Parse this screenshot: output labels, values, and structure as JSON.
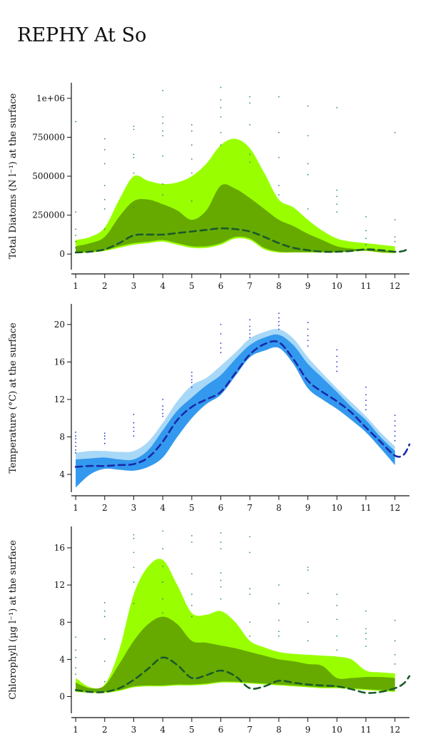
{
  "page": {
    "title": "REPHY At So"
  },
  "chart_data": [
    {
      "type": "area",
      "ylabel": "Total Diatoms (N l⁻¹) at the surface",
      "xlim": [
        0.85,
        12.5
      ],
      "ylim": [
        -100000,
        1100000
      ],
      "x_ticks": [
        1,
        2,
        3,
        4,
        5,
        6,
        7,
        8,
        9,
        10,
        11,
        12
      ],
      "y_ticks": [
        0,
        250000,
        500000,
        750000,
        1000000
      ],
      "y_tick_labels": [
        "0",
        "250000",
        "500000",
        "750000",
        "1e+06"
      ],
      "colors": {
        "outer_band": "#99ff00",
        "inner_band": "#66aa00",
        "median_line": "#1a5a2a",
        "points": "#2a8a7a"
      },
      "outer_band": {
        "x": [
          1,
          1.5,
          2,
          2.5,
          3,
          3.5,
          4,
          4.5,
          5,
          5.5,
          6,
          6.5,
          7,
          7.5,
          8,
          8.5,
          9,
          9.5,
          10,
          10.5,
          11,
          11.5,
          12
        ],
        "lower": [
          5000,
          10000,
          20000,
          40000,
          60000,
          70000,
          80000,
          60000,
          40000,
          40000,
          60000,
          100000,
          90000,
          30000,
          10000,
          10000,
          10000,
          10000,
          10000,
          15000,
          20000,
          10000,
          5000
        ],
        "upper": [
          90000,
          110000,
          170000,
          350000,
          500000,
          470000,
          450000,
          460000,
          500000,
          580000,
          700000,
          740000,
          680000,
          520000,
          350000,
          300000,
          220000,
          150000,
          100000,
          80000,
          70000,
          60000,
          50000
        ]
      },
      "inner_band": {
        "x": [
          1,
          1.5,
          2,
          2.5,
          3,
          3.5,
          4,
          4.5,
          5,
          5.5,
          6,
          6.5,
          7,
          7.5,
          8,
          8.5,
          9,
          9.5,
          10,
          10.5,
          11,
          11.5,
          12
        ],
        "lower": [
          10000,
          15000,
          25000,
          50000,
          70000,
          80000,
          90000,
          70000,
          50000,
          50000,
          70000,
          110000,
          100000,
          40000,
          15000,
          12000,
          12000,
          12000,
          12000,
          18000,
          22000,
          12000,
          8000
        ],
        "upper": [
          50000,
          70000,
          110000,
          240000,
          340000,
          350000,
          320000,
          280000,
          220000,
          280000,
          440000,
          420000,
          360000,
          290000,
          220000,
          180000,
          130000,
          90000,
          50000,
          35000,
          30000,
          25000,
          20000
        ]
      },
      "median_line": {
        "x": [
          1,
          1.5,
          2,
          2.5,
          3,
          3.5,
          4,
          4.5,
          5,
          5.5,
          6,
          6.5,
          7,
          7.5,
          8,
          8.5,
          9,
          9.5,
          10,
          10.5,
          11,
          11.5,
          12,
          12.3,
          12.5
        ],
        "y": [
          10000,
          15000,
          30000,
          70000,
          120000,
          125000,
          125000,
          135000,
          145000,
          155000,
          165000,
          160000,
          145000,
          110000,
          70000,
          40000,
          25000,
          15000,
          15000,
          20000,
          30000,
          25000,
          15000,
          20000,
          40000
        ]
      },
      "points": {
        "x": [
          1,
          1,
          1,
          1,
          1,
          1,
          2,
          2,
          2,
          2,
          2,
          2,
          2,
          3,
          3,
          3,
          3,
          3,
          3,
          4,
          4,
          4,
          4,
          4,
          4,
          4,
          4,
          5,
          5,
          5,
          5,
          5,
          5,
          6,
          6,
          6,
          6,
          6,
          6,
          7,
          7,
          7,
          7,
          7,
          8,
          8,
          8,
          8,
          8,
          9,
          9,
          9,
          9,
          9,
          10,
          10,
          10,
          10,
          10,
          11,
          11,
          11,
          11,
          12,
          12,
          12,
          12
        ],
        "y": [
          850000,
          270000,
          160000,
          120000,
          80000,
          40000,
          740000,
          670000,
          580000,
          440000,
          350000,
          290000,
          160000,
          820000,
          800000,
          640000,
          620000,
          520000,
          300000,
          1050000,
          880000,
          840000,
          790000,
          760000,
          630000,
          450000,
          380000,
          830000,
          790000,
          700000,
          610000,
          520000,
          340000,
          1070000,
          990000,
          940000,
          880000,
          780000,
          700000,
          1010000,
          970000,
          830000,
          640000,
          590000,
          1010000,
          780000,
          620000,
          440000,
          380000,
          950000,
          760000,
          580000,
          510000,
          290000,
          940000,
          410000,
          370000,
          320000,
          270000,
          240000,
          150000,
          100000,
          60000,
          780000,
          220000,
          110000,
          80000
        ]
      }
    },
    {
      "type": "area",
      "ylabel": "Temperature (°C) at the surface",
      "xlim": [
        0.85,
        12.5
      ],
      "ylim": [
        2.1,
        22.2
      ],
      "x_ticks": [
        1,
        2,
        3,
        4,
        5,
        6,
        7,
        8,
        9,
        10,
        11,
        12
      ],
      "y_ticks": [
        4,
        8,
        12,
        16,
        20
      ],
      "y_tick_labels": [
        "4",
        "8",
        "12",
        "16",
        "20"
      ],
      "colors": {
        "outer_band": "#a8d8f8",
        "inner_band": "#3399ee",
        "median_line": "#1a2aaa",
        "points": "#2233cc"
      },
      "outer_band": {
        "x": [
          1,
          1.5,
          2,
          2.5,
          3,
          3.5,
          4,
          4.5,
          5,
          5.5,
          6,
          6.5,
          7,
          7.5,
          8,
          8.5,
          9,
          9.5,
          10,
          10.5,
          11,
          11.5,
          12
        ],
        "lower": [
          2.6,
          4.0,
          4.6,
          4.5,
          4.4,
          4.8,
          5.8,
          8.0,
          10.0,
          11.5,
          12.5,
          14.5,
          16.5,
          17.2,
          17.5,
          15.8,
          13.2,
          12.0,
          11.0,
          9.8,
          8.5,
          6.8,
          5.0
        ],
        "upper": [
          6.3,
          6.5,
          6.5,
          6.4,
          6.5,
          7.5,
          9.5,
          11.8,
          13.5,
          14.3,
          15.6,
          17.0,
          18.5,
          19.2,
          19.5,
          18.5,
          16.5,
          14.8,
          13.2,
          11.7,
          10.2,
          8.5,
          7.0
        ]
      },
      "inner_band": {
        "x": [
          1,
          1.5,
          2,
          2.5,
          3,
          3.5,
          4,
          4.5,
          5,
          5.5,
          6,
          6.5,
          7,
          7.5,
          8,
          8.5,
          9,
          9.5,
          10,
          10.5,
          11,
          11.5,
          12
        ],
        "lower": [
          2.6,
          4.0,
          4.6,
          4.5,
          4.4,
          4.8,
          5.8,
          8.0,
          10.0,
          11.5,
          12.5,
          14.5,
          16.5,
          17.2,
          17.5,
          15.8,
          13.2,
          12.0,
          11.0,
          9.8,
          8.5,
          6.8,
          5.0
        ],
        "upper": [
          5.6,
          5.7,
          5.8,
          5.6,
          5.6,
          6.6,
          8.7,
          10.8,
          12.2,
          13.5,
          14.6,
          16.3,
          17.8,
          18.6,
          18.9,
          17.8,
          15.8,
          14.3,
          12.8,
          11.2,
          9.8,
          8.0,
          6.5
        ]
      },
      "median_line": {
        "x": [
          1,
          1.5,
          2,
          2.5,
          3,
          3.5,
          4,
          4.5,
          5,
          5.5,
          6,
          6.5,
          7,
          7.5,
          8,
          8.5,
          9,
          9.5,
          10,
          10.5,
          11,
          11.5,
          12,
          12.3,
          12.5
        ],
        "y": [
          4.8,
          4.9,
          4.9,
          5.0,
          5.1,
          5.8,
          7.5,
          9.8,
          11.2,
          12.0,
          12.8,
          14.8,
          16.8,
          17.9,
          18.1,
          16.3,
          14.0,
          12.8,
          11.8,
          10.6,
          9.0,
          7.5,
          6.0,
          6.1,
          7.2
        ]
      },
      "points": {
        "x": [
          1,
          1,
          1,
          1,
          1,
          1,
          1,
          2,
          2,
          2,
          2,
          3,
          3,
          3,
          3,
          3,
          4,
          4,
          4,
          4,
          4,
          5,
          5,
          5,
          5,
          5,
          6,
          6,
          6,
          6,
          6,
          7,
          7,
          7,
          7,
          7,
          8,
          8,
          8,
          8,
          8,
          9,
          9,
          9,
          9,
          9,
          10,
          10,
          10,
          10,
          10,
          11,
          11,
          11,
          11,
          11,
          12,
          12,
          12,
          12,
          12,
          12
        ],
        "y": [
          8.5,
          8.1,
          7.8,
          7.4,
          7.0,
          6.6,
          6.3,
          8.4,
          8.1,
          7.8,
          7.3,
          10.4,
          9.5,
          9.0,
          8.6,
          8.1,
          12.0,
          11.3,
          10.9,
          10.5,
          10.2,
          14.9,
          14.5,
          14.1,
          13.8,
          13.3,
          20.0,
          19.0,
          18.0,
          17.5,
          17.0,
          20.5,
          19.8,
          19.4,
          19.0,
          18.6,
          21.2,
          20.7,
          20.3,
          19.9,
          19.5,
          20.2,
          19.5,
          18.8,
          18.3,
          17.7,
          17.3,
          16.6,
          16.0,
          15.5,
          15.0,
          13.3,
          12.5,
          11.9,
          11.4,
          10.9,
          10.3,
          9.7,
          9.2,
          8.6,
          8.1,
          7.6
        ]
      }
    },
    {
      "type": "area",
      "ylabel": "Chlorophyll (µg l⁻¹) at the surface",
      "xlim": [
        0.85,
        12.5
      ],
      "ylim": [
        -1.8,
        18.3
      ],
      "x_ticks": [
        1,
        2,
        3,
        4,
        5,
        6,
        7,
        8,
        9,
        10,
        11,
        12
      ],
      "y_ticks": [
        0,
        4,
        8,
        12,
        16
      ],
      "y_tick_labels": [
        "0",
        "4",
        "8",
        "12",
        "16"
      ],
      "colors": {
        "outer_band": "#99ff00",
        "inner_band": "#66aa00",
        "median_line": "#1a5a2a",
        "points": "#2a8a7a"
      },
      "outer_band": {
        "x": [
          1,
          1.5,
          2,
          2.5,
          3,
          3.5,
          4,
          4.5,
          5,
          5.5,
          6,
          6.5,
          7,
          7.5,
          8,
          8.5,
          9,
          9.5,
          10,
          10.5,
          11,
          11.5,
          12
        ],
        "lower": [
          0.5,
          0.4,
          0.4,
          0.6,
          1.0,
          1.1,
          1.1,
          1.2,
          1.2,
          1.3,
          1.5,
          1.5,
          1.4,
          1.3,
          1.2,
          1.1,
          1.0,
          0.9,
          0.9,
          0.8,
          0.7,
          0.6,
          0.5
        ],
        "upper": [
          2.0,
          1.0,
          1.3,
          5.0,
          11.0,
          14.0,
          14.7,
          12.0,
          9.0,
          8.8,
          9.2,
          8.0,
          6.0,
          5.3,
          4.8,
          4.6,
          4.5,
          4.4,
          4.3,
          4.0,
          2.8,
          2.6,
          2.5
        ]
      },
      "inner_band": {
        "x": [
          1,
          1.5,
          2,
          2.5,
          3,
          3.5,
          4,
          4.5,
          5,
          5.5,
          6,
          6.5,
          7,
          7.5,
          8,
          8.5,
          9,
          9.5,
          10,
          10.5,
          11,
          11.5,
          12
        ],
        "lower": [
          0.6,
          0.5,
          0.5,
          0.7,
          1.1,
          1.2,
          1.2,
          1.3,
          1.3,
          1.4,
          1.6,
          1.6,
          1.5,
          1.4,
          1.3,
          1.2,
          1.1,
          1.0,
          1.0,
          0.9,
          0.8,
          0.7,
          0.6
        ],
        "upper": [
          1.5,
          0.9,
          1.2,
          3.5,
          6.0,
          7.8,
          8.6,
          7.8,
          6.0,
          5.8,
          5.5,
          5.2,
          4.8,
          4.4,
          4.0,
          3.8,
          3.5,
          3.3,
          2.0,
          2.0,
          2.1,
          2.1,
          2.0
        ]
      },
      "median_line": {
        "x": [
          1,
          1.5,
          2,
          2.5,
          3,
          3.5,
          4,
          4.5,
          5,
          5.5,
          6,
          6.5,
          7,
          7.5,
          8,
          8.5,
          9,
          9.5,
          10,
          10.5,
          11,
          11.5,
          12,
          12.3,
          12.5
        ],
        "y": [
          0.7,
          0.5,
          0.5,
          0.9,
          1.8,
          3.0,
          4.2,
          3.4,
          2.0,
          2.3,
          2.8,
          2.2,
          0.9,
          1.1,
          1.7,
          1.5,
          1.3,
          1.2,
          1.1,
          0.8,
          0.4,
          0.5,
          0.9,
          1.4,
          2.2
        ]
      },
      "points": {
        "x": [
          1,
          1,
          1,
          1,
          1,
          2,
          2,
          2,
          2,
          2,
          2,
          3,
          3,
          3,
          3,
          3,
          3,
          4,
          4,
          4,
          4,
          4,
          4,
          5,
          5,
          5,
          5,
          5,
          5,
          6,
          6,
          6,
          6,
          6,
          6,
          6,
          7,
          7,
          7,
          7,
          7,
          7,
          8,
          8,
          8,
          8,
          8,
          9,
          9,
          9,
          9,
          9,
          10,
          10,
          10,
          10,
          10,
          11,
          11,
          11,
          11,
          11,
          12,
          12,
          12,
          12
        ],
        "y": [
          6.4,
          5.0,
          4.2,
          3.1,
          2.4,
          10.1,
          9.2,
          8.6,
          6.2,
          3.8,
          1.6,
          17.4,
          17.0,
          15.5,
          13.9,
          12.3,
          10.0,
          17.8,
          15.9,
          14.0,
          12.3,
          10.5,
          9.0,
          17.3,
          16.6,
          13.2,
          11.0,
          9.8,
          8.6,
          17.6,
          16.6,
          15.9,
          13.3,
          12.5,
          11.8,
          10.5,
          17.2,
          15.5,
          11.6,
          11.0,
          8.0,
          6.5,
          12.0,
          10.0,
          8.2,
          7.0,
          6.5,
          13.9,
          13.6,
          11.1,
          8.0,
          6.0,
          11.0,
          9.8,
          8.3,
          6.5,
          5.0,
          9.2,
          7.3,
          6.8,
          6.2,
          5.4,
          8.2,
          6.0,
          4.5,
          3.5
        ]
      }
    }
  ]
}
